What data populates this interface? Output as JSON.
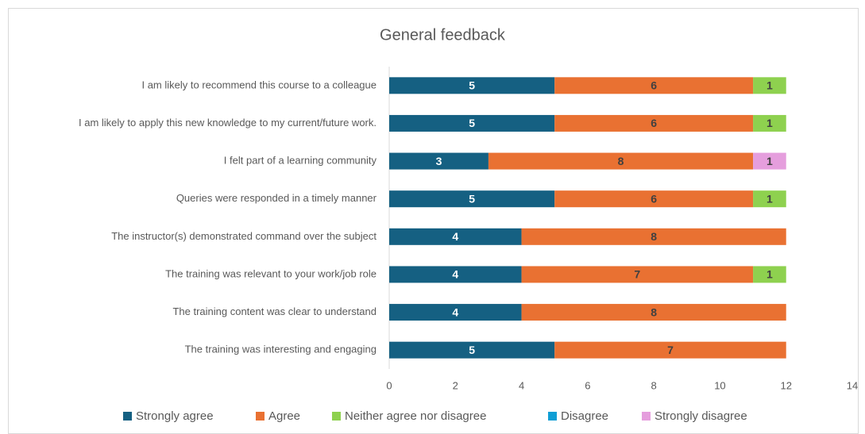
{
  "chart_data": {
    "type": "stacked_bar_horizontal",
    "title": "General feedback",
    "categories": [
      "I am likely to recommend this course to a colleague",
      "I am likely to apply this new knowledge to my current/future work.",
      "I felt part of a learning community",
      "Queries were responded in a timely manner",
      "The instructor(s) demonstrated command over the subject",
      "The training was relevant to your work/job role",
      "The training content was clear to understand",
      "The training was interesting and engaging"
    ],
    "series": [
      {
        "name": "Strongly agree",
        "color": "#156082",
        "values": [
          5,
          5,
          3,
          5,
          4,
          4,
          4,
          5
        ]
      },
      {
        "name": "Agree",
        "color": "#e97132",
        "values": [
          6,
          6,
          8,
          6,
          8,
          7,
          8,
          7
        ]
      },
      {
        "name": "Neither agree nor disagree",
        "color": "#8ed14f",
        "values": [
          1,
          1,
          0,
          1,
          0,
          1,
          0,
          0
        ]
      },
      {
        "name": "Disagree",
        "color": "#0f9ed5",
        "values": [
          0,
          0,
          0,
          0,
          0,
          0,
          0,
          0
        ]
      },
      {
        "name": "Strongly disagree",
        "color": "#e59edd",
        "values": [
          0,
          0,
          1,
          0,
          0,
          0,
          0,
          0
        ]
      }
    ],
    "xlim": [
      0,
      14
    ],
    "xticks": [
      0,
      2,
      4,
      6,
      8,
      10,
      12,
      14
    ],
    "legend": "bottom"
  }
}
